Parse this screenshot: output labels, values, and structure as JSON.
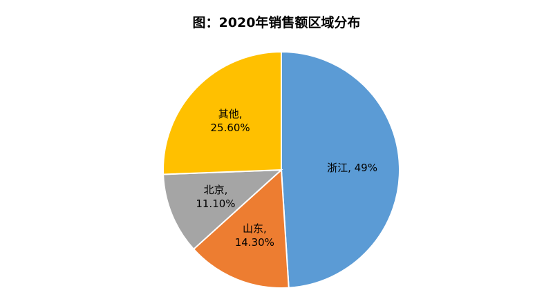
{
  "chart_data": {
    "type": "pie",
    "title": "图：2020年销售额区域分布",
    "categories": [
      "浙江",
      "山东",
      "北京",
      "其他"
    ],
    "values": [
      49,
      14.3,
      11.1,
      25.6
    ],
    "value_labels": [
      "浙江, 49%",
      "山东, 14.30%",
      "北京, 11.10%",
      "其他, 25.60%"
    ],
    "colors": [
      "#5b9bd5",
      "#ed7d31",
      "#a5a5a5",
      "#ffc000"
    ]
  }
}
